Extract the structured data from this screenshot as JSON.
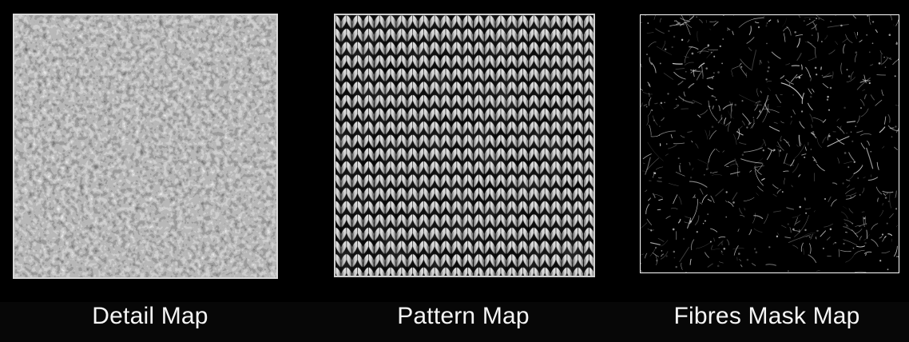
{
  "panels": [
    {
      "label": "Detail Map",
      "texture": "monochrome noise",
      "colors": [
        "#2a2a2a",
        "#ffffff"
      ]
    },
    {
      "label": "Pattern Map",
      "texture": "knitted stitch pattern",
      "colors": [
        "#070707",
        "#e6e6e6"
      ]
    },
    {
      "label": "Fibres Mask Map",
      "texture": "sparse white fibres on black",
      "colors": [
        "#000000",
        "#d8d8d8"
      ]
    }
  ]
}
